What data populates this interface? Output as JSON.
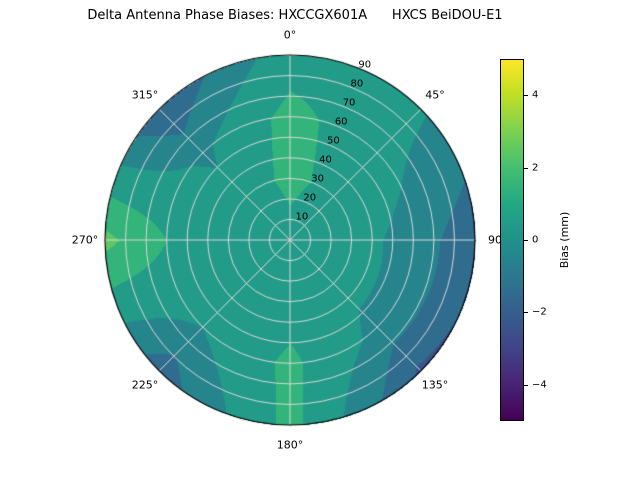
{
  "title": "Delta Antenna Phase Biases: HXCCGX601A      HXCS BeiDOU-E1",
  "chart_data": {
    "type": "heatmap",
    "projection": "polar",
    "title": "Delta Antenna Phase Biases: HXCCGX601A      HXCS BeiDOU-E1",
    "angular_ticks": [
      {
        "angle": 0,
        "label": "0°"
      },
      {
        "angle": 45,
        "label": "45°"
      },
      {
        "angle": 90,
        "label": "90"
      },
      {
        "angle": 135,
        "label": "135°"
      },
      {
        "angle": 180,
        "label": "180°"
      },
      {
        "angle": 225,
        "label": "225°"
      },
      {
        "angle": 270,
        "label": "270°"
      },
      {
        "angle": 315,
        "label": "315°"
      }
    ],
    "radial_ticks": [
      10,
      20,
      30,
      40,
      50,
      60,
      70,
      80,
      90
    ],
    "radial_tick_angle_deg": 22.5,
    "azimuth_deg": [
      0,
      45,
      90,
      135,
      180,
      225,
      270,
      315,
      360
    ],
    "zenith_deg": [
      0,
      30,
      60,
      90
    ],
    "bias_mm": [
      [
        0.6,
        1.3,
        1.3,
        0.6
      ],
      [
        0.6,
        0.6,
        0.3,
        0.1
      ],
      [
        0.6,
        0.4,
        -0.4,
        -1.8
      ],
      [
        0.6,
        0.4,
        -0.3,
        -2.2
      ],
      [
        0.6,
        0.6,
        1.2,
        1.3
      ],
      [
        0.6,
        0.4,
        0.0,
        -1.6
      ],
      [
        0.6,
        0.5,
        1.0,
        2.3
      ],
      [
        0.6,
        0.4,
        -0.2,
        -2.0
      ],
      [
        0.6,
        1.3,
        1.3,
        0.6
      ]
    ],
    "contour_level_step_mm": 1,
    "colorbar": {
      "label": "Bias (mm)",
      "min": -5,
      "max": 5,
      "ticks": [
        {
          "value": 4,
          "label": "4"
        },
        {
          "value": 2,
          "label": "2"
        },
        {
          "value": 0,
          "label": "0"
        },
        {
          "value": -2,
          "label": "−2"
        },
        {
          "value": -4,
          "label": "−4"
        }
      ],
      "colormap": "viridis",
      "stops": [
        {
          "pos": 0.0,
          "color": "#440154"
        },
        {
          "pos": 0.1,
          "color": "#482475"
        },
        {
          "pos": 0.2,
          "color": "#414487"
        },
        {
          "pos": 0.3,
          "color": "#355f8d"
        },
        {
          "pos": 0.4,
          "color": "#2a788e"
        },
        {
          "pos": 0.5,
          "color": "#21918c"
        },
        {
          "pos": 0.6,
          "color": "#22a884"
        },
        {
          "pos": 0.7,
          "color": "#44bf70"
        },
        {
          "pos": 0.8,
          "color": "#7ad151"
        },
        {
          "pos": 0.9,
          "color": "#bddf26"
        },
        {
          "pos": 1.0,
          "color": "#fde725"
        }
      ]
    },
    "grid": {
      "on": true,
      "gridline_color": "#d9d9d9",
      "outline_color": "#000000"
    }
  }
}
